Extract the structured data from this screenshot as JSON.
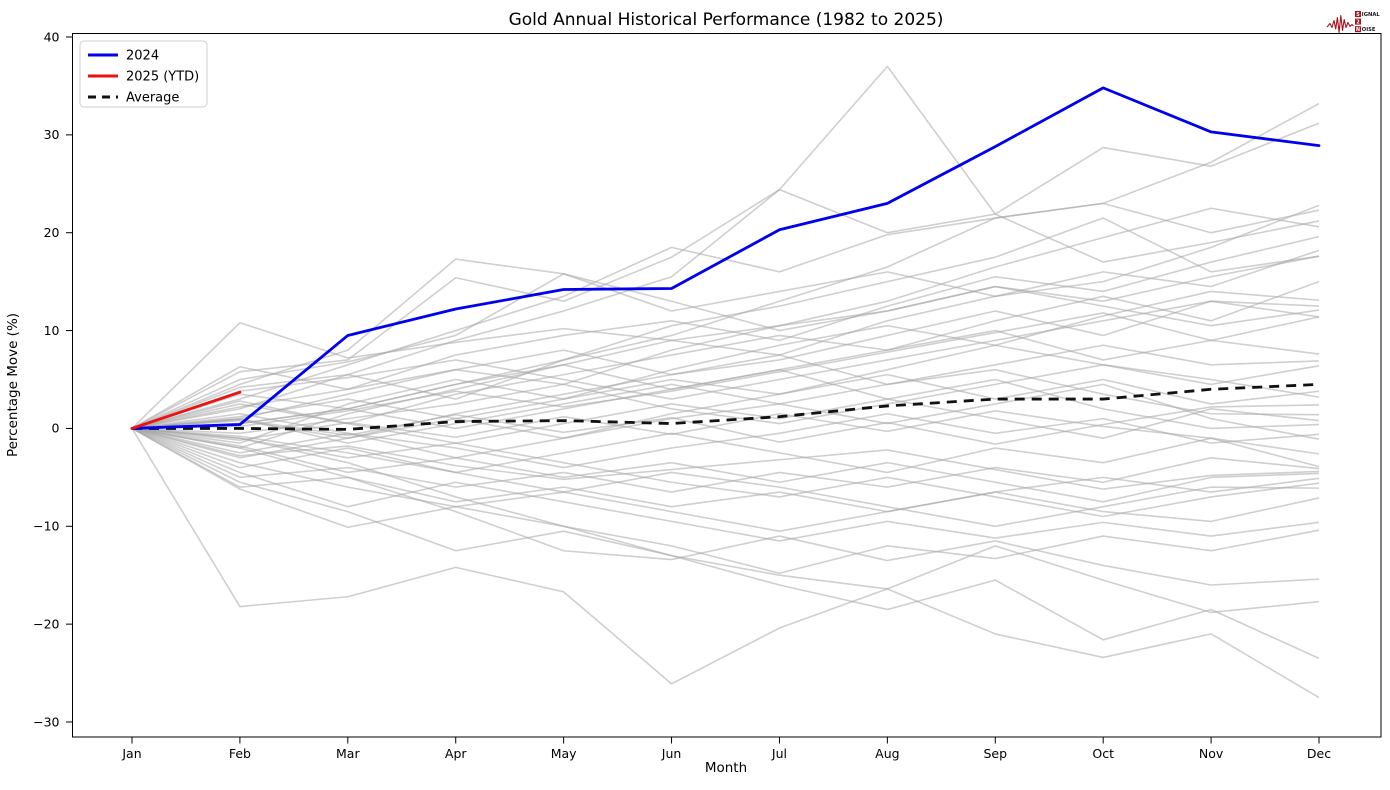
{
  "chart_data": {
    "type": "line",
    "title": "Gold Annual Historical Performance (1982 to 2025)",
    "xlabel": "Month",
    "ylabel": "Percentage Move (%)",
    "categories": [
      "Jan",
      "Feb",
      "Mar",
      "Apr",
      "May",
      "Jun",
      "Jul",
      "Aug",
      "Sep",
      "Oct",
      "Nov",
      "Dec"
    ],
    "ylim": [
      -30,
      40
    ],
    "yticks": [
      -30,
      -20,
      -10,
      0,
      10,
      20,
      30,
      40
    ],
    "grid": false,
    "legend": {
      "position": "upper-left",
      "items": [
        {
          "label": "2024",
          "color": "#0000ee",
          "dash": ""
        },
        {
          "label": "2025 (YTD)",
          "color": "#ee1111",
          "dash": ""
        },
        {
          "label": "Average",
          "color": "#111111",
          "dash": "8 6"
        }
      ]
    },
    "series": [
      {
        "name": "2024",
        "color": "#0000ee",
        "width": 2.8,
        "dash": "",
        "values": [
          0,
          0.4,
          9.5,
          12.2,
          14.2,
          14.3,
          20.3,
          23.0,
          28.8,
          34.8,
          30.3,
          28.9
        ]
      },
      {
        "name": "2025 (YTD)",
        "color": "#ee1111",
        "width": 2.8,
        "dash": "",
        "values": [
          0,
          3.7
        ]
      },
      {
        "name": "Average",
        "color": "#111111",
        "width": 2.8,
        "dash": "10 7",
        "values": [
          0,
          0,
          -0.1,
          0.7,
          0.8,
          0.5,
          1.2,
          2.3,
          3.0,
          3.0,
          4.0,
          4.5
        ]
      }
    ],
    "historical_years": {
      "name": "individual-years-1982-2023",
      "color": "#a8a8a8",
      "opacity": 0.55,
      "width": 1.6,
      "series": [
        [
          0,
          2.0,
          5.5,
          9.0,
          12.0,
          15.5,
          24.4,
          37.0,
          21.9,
          28.7,
          26.8,
          31.2
        ],
        [
          0,
          0.5,
          2.0,
          4.5,
          7.0,
          9.5,
          13.0,
          16.5,
          21.5,
          23.0,
          27.2,
          33.2
        ],
        [
          0,
          10.8,
          7.2,
          8.8,
          10.2,
          9.0,
          10.5,
          12.0,
          14.5,
          13.0,
          15.5,
          17.6
        ],
        [
          0,
          4.5,
          8.0,
          17.3,
          15.8,
          12.0,
          14.0,
          16.0,
          13.5,
          15.0,
          18.5,
          22.8
        ],
        [
          0,
          3.0,
          6.5,
          10.0,
          13.5,
          18.5,
          16.0,
          19.8,
          21.5,
          23.0,
          20.0,
          22.3
        ],
        [
          0,
          5.8,
          7.0,
          15.4,
          13.0,
          17.5,
          24.4,
          20.0,
          21.9,
          17.0,
          19.0,
          21.2
        ],
        [
          0,
          1.0,
          3.5,
          6.0,
          4.5,
          8.0,
          10.5,
          13.0,
          16.5,
          19.5,
          22.5,
          20.6
        ],
        [
          0,
          6.3,
          4.0,
          7.5,
          9.5,
          11.0,
          9.0,
          12.5,
          15.5,
          14.0,
          17.0,
          19.6
        ],
        [
          0,
          -2.0,
          1.5,
          4.0,
          6.5,
          9.0,
          7.5,
          11.0,
          13.5,
          16.0,
          14.5,
          18.2
        ],
        [
          0,
          4.2,
          5.5,
          3.0,
          7.0,
          10.5,
          12.5,
          15.0,
          17.5,
          21.5,
          16.0,
          17.6
        ],
        [
          0,
          2.5,
          0.5,
          3.5,
          5.5,
          7.5,
          9.5,
          8.0,
          11.0,
          13.5,
          11.0,
          15.0
        ],
        [
          0,
          -1.5,
          2.5,
          5.0,
          3.0,
          6.0,
          8.5,
          10.5,
          8.5,
          11.5,
          14.0,
          13.1
        ],
        [
          0,
          5.0,
          6.8,
          9.5,
          15.8,
          13.0,
          10.0,
          12.0,
          14.5,
          12.5,
          10.5,
          12.1
        ],
        [
          0,
          0.8,
          -1.0,
          1.5,
          3.5,
          5.5,
          7.0,
          9.5,
          12.0,
          9.5,
          13.0,
          11.4
        ],
        [
          0,
          3.5,
          2.0,
          4.5,
          6.5,
          4.0,
          6.0,
          8.0,
          10.0,
          7.0,
          9.0,
          7.6
        ],
        [
          0,
          -3.0,
          -1.0,
          1.0,
          3.0,
          5.0,
          3.5,
          6.0,
          8.5,
          6.5,
          4.5,
          6.4
        ],
        [
          0,
          1.2,
          3.0,
          1.0,
          -1.0,
          1.5,
          3.5,
          5.5,
          3.0,
          5.0,
          2.5,
          3.8
        ],
        [
          0,
          -0.5,
          1.0,
          2.5,
          4.5,
          2.0,
          0.5,
          2.5,
          4.5,
          6.5,
          5.0,
          3.2
        ],
        [
          0,
          2.2,
          4.0,
          6.0,
          8.0,
          5.5,
          7.5,
          4.5,
          6.0,
          3.5,
          1.5,
          1.4
        ],
        [
          0,
          -1.0,
          -3.0,
          -1.5,
          0.5,
          2.5,
          1.0,
          3.0,
          1.0,
          -1.0,
          2.0,
          0.8
        ],
        [
          0,
          0.5,
          2.0,
          0.0,
          2.0,
          4.0,
          6.0,
          3.0,
          5.0,
          2.0,
          0.0,
          0.4
        ],
        [
          0,
          -2.5,
          -0.5,
          -2.0,
          -4.0,
          -2.0,
          -0.5,
          1.5,
          -0.5,
          1.0,
          -1.5,
          -0.6
        ],
        [
          0,
          1.5,
          -0.5,
          -3.0,
          -1.0,
          1.0,
          2.5,
          0.5,
          2.5,
          4.5,
          1.0,
          -1.1
        ],
        [
          0,
          -4.0,
          -2.0,
          -4.5,
          -2.5,
          -0.5,
          -2.5,
          -4.5,
          -2.0,
          -3.5,
          -1.0,
          -2.6
        ],
        [
          0,
          -5.0,
          -4.0,
          -6.0,
          -4.5,
          -6.5,
          -4.5,
          -6.0,
          -4.0,
          -5.5,
          -3.0,
          -4.1
        ],
        [
          0,
          -1.8,
          -4.5,
          -3.0,
          -5.0,
          -3.5,
          -5.5,
          -3.5,
          -5.5,
          -7.5,
          -5.0,
          -4.6
        ],
        [
          0,
          -6.0,
          -5.0,
          -7.5,
          -6.0,
          -8.0,
          -6.5,
          -8.5,
          -6.5,
          -5.0,
          -6.5,
          -5.1
        ],
        [
          0,
          2.8,
          0.5,
          -1.5,
          -3.5,
          -5.5,
          -7.0,
          -5.0,
          -7.0,
          -9.0,
          -7.0,
          -5.6
        ],
        [
          0,
          -3.5,
          -6.0,
          -8.0,
          -6.5,
          -4.5,
          -6.0,
          -8.0,
          -10.0,
          -8.0,
          -6.0,
          -6.1
        ],
        [
          0,
          -0.8,
          -2.5,
          -4.5,
          -6.5,
          -8.5,
          -10.5,
          -8.5,
          -6.5,
          -8.5,
          -9.5,
          -7.1
        ],
        [
          0,
          -4.5,
          -8.0,
          -5.5,
          -7.5,
          -9.5,
          -11.5,
          -9.5,
          -11.2,
          -9.6,
          -11.0,
          -9.6
        ],
        [
          0,
          -6.2,
          -10.1,
          -8.0,
          -10.0,
          -12.0,
          -14.8,
          -12.0,
          -13.3,
          -11.0,
          -12.5,
          -10.4
        ],
        [
          0,
          -2.0,
          -5.0,
          -8.5,
          -12.5,
          -13.4,
          -11.0,
          -13.5,
          -11.5,
          -14.0,
          -16.0,
          -15.4
        ],
        [
          0,
          -5.5,
          -8.5,
          -12.5,
          -10.5,
          -13.0,
          -15.0,
          -16.4,
          -12.0,
          -15.5,
          -18.8,
          -17.7
        ],
        [
          0,
          -1.0,
          -3.5,
          -7.0,
          -10.0,
          -13.0,
          -16.0,
          -18.5,
          -15.5,
          -21.6,
          -18.5,
          -23.5
        ],
        [
          0,
          -18.2,
          -17.2,
          -14.2,
          -16.7,
          -26.1,
          -20.4,
          -16.4,
          -21.0,
          -23.4,
          -21.0,
          -27.5
        ],
        [
          0,
          0.2,
          1.8,
          3.8,
          2.2,
          3.8,
          5.8,
          7.8,
          9.8,
          11.8,
          9.0,
          11.4
        ],
        [
          0,
          3.8,
          5.2,
          7.0,
          5.0,
          3.0,
          5.0,
          7.0,
          9.0,
          11.0,
          13.0,
          12.5
        ],
        [
          0,
          1.0,
          -1.5,
          0.5,
          2.5,
          4.5,
          2.5,
          4.5,
          6.5,
          8.5,
          6.5,
          6.9
        ],
        [
          0,
          -1.2,
          0.6,
          -0.9,
          1.2,
          -0.6,
          1.5,
          -0.3,
          1.8,
          0.2,
          -1.0,
          -3.9
        ],
        [
          0,
          0.9,
          -0.7,
          1.4,
          -0.4,
          1.1,
          -1.4,
          0.6,
          -1.6,
          0.4,
          2.2,
          2.4
        ],
        [
          0,
          -2.8,
          -1.8,
          -3.8,
          -5.2,
          -4.2,
          -3.2,
          -2.2,
          -4.2,
          -6.2,
          -4.8,
          -4.4
        ]
      ]
    }
  },
  "logo": {
    "color": "#a6131e",
    "rows": [
      {
        "badge": "S",
        "rest": "IGNAL"
      },
      {
        "badge": "2",
        "rest": ""
      },
      {
        "badge": "N",
        "rest": "OISE"
      }
    ]
  }
}
